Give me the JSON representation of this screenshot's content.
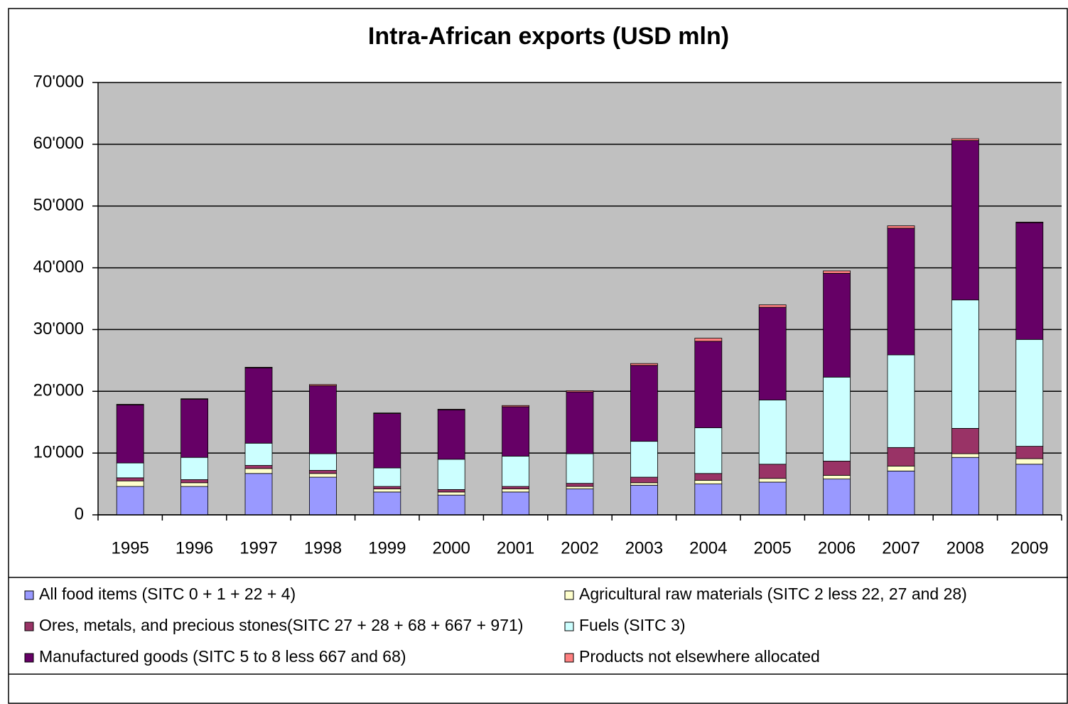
{
  "chart_data": {
    "type": "stacked_bar",
    "title": "Intra-African exports (USD mln)",
    "categories": [
      "1995",
      "1996",
      "1997",
      "1998",
      "1999",
      "2000",
      "2001",
      "2002",
      "2003",
      "2004",
      "2005",
      "2006",
      "2007",
      "2008",
      "2009"
    ],
    "series": [
      {
        "name": "All food items (SITC 0 + 1 + 22 + 4)",
        "color": "#9999ff",
        "values": [
          4600,
          4600,
          6700,
          6100,
          3700,
          3200,
          3700,
          4200,
          4800,
          5000,
          5300,
          5800,
          7100,
          9300,
          8200
        ]
      },
      {
        "name": "Agricultural raw materials (SITC 2 less 22, 27 and 28)",
        "color": "#ffffcc",
        "values": [
          900,
          600,
          800,
          600,
          500,
          500,
          500,
          400,
          400,
          600,
          600,
          600,
          800,
          600,
          900
        ]
      },
      {
        "name": "Ores, metals, and precious stones(SITC 27 + 28 + 68 + 667 + 971)",
        "color": "#993366",
        "values": [
          500,
          500,
          500,
          500,
          400,
          400,
          400,
          500,
          900,
          1100,
          2300,
          2300,
          3000,
          4100,
          2000
        ]
      },
      {
        "name": "Fuels (SITC 3)",
        "color": "#ccffff",
        "values": [
          2400,
          3600,
          3600,
          2700,
          3000,
          4900,
          4900,
          4800,
          5800,
          7400,
          10400,
          13600,
          15000,
          20800,
          17300
        ]
      },
      {
        "name": "Manufactured goods (SITC 5 to 8 less 667 and 68)",
        "color": "#660066",
        "values": [
          9400,
          9400,
          12200,
          11000,
          8800,
          8000,
          8000,
          10000,
          12300,
          14000,
          15000,
          16800,
          20500,
          25800,
          18900
        ]
      },
      {
        "name": "Products not elsewhere allocated",
        "color": "#ff8080",
        "values": [
          100,
          100,
          100,
          200,
          100,
          100,
          200,
          200,
          300,
          500,
          400,
          400,
          400,
          300,
          100
        ]
      }
    ],
    "ylim": [
      0,
      70000
    ],
    "yticks": [
      0,
      {
        "value": 10000,
        "label": "10'000"
      },
      {
        "value": 20000,
        "label": "20'000"
      },
      {
        "value": 30000,
        "label": "30'000"
      },
      {
        "value": 40000,
        "label": "40'000"
      },
      {
        "value": 50000,
        "label": "50'000"
      },
      {
        "value": 60000,
        "label": "60'000"
      },
      {
        "value": 70000,
        "label": "70'000"
      }
    ],
    "grid": true
  }
}
